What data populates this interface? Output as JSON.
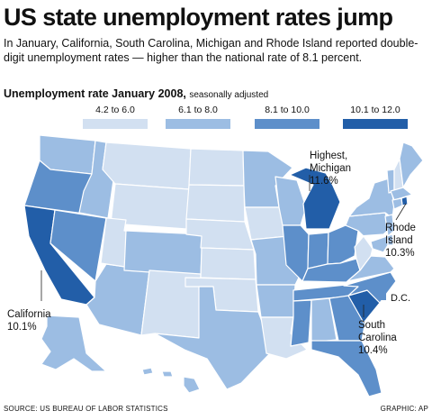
{
  "title": "US state unemployment rates jump",
  "subtitle": "In January, California, South Carolina, Michigan and Rhode Island reported double-digit unemployment rates — higher than the national rate of 8.1 percent.",
  "legend": {
    "title": "Unemployment rate January 2008,",
    "note": "seasonally adjusted",
    "classes": [
      {
        "label": "4.2 to 6.0",
        "color": "#d2e0f1"
      },
      {
        "label": "6.1 to 8.0",
        "color": "#9cbde3"
      },
      {
        "label": "8.1 to 10.0",
        "color": "#5d8fca"
      },
      {
        "label": "10.1 to 12.0",
        "color": "#225ea8"
      }
    ]
  },
  "callouts": {
    "michigan_line1": "Highest,",
    "michigan_line2": "Michigan",
    "michigan_value": "11.6%",
    "rhode_line1": "Rhode",
    "rhode_line2": "Island",
    "rhode_value": "10.3%",
    "california_line1": "California",
    "california_value": "10.1%",
    "southcarolina_line1": "South",
    "southcarolina_line2": "Carolina",
    "southcarolina_value": "10.4%",
    "dc_label": "D.C."
  },
  "footer": {
    "source": "SOURCE: US Bureau of Labor Statistics",
    "credit": "GRAPHIC: AP"
  },
  "states": [
    {
      "id": "WA",
      "class": 1
    },
    {
      "id": "OR",
      "class": 2
    },
    {
      "id": "CA",
      "class": 3
    },
    {
      "id": "ID",
      "class": 1
    },
    {
      "id": "NV",
      "class": 2
    },
    {
      "id": "AZ",
      "class": 1
    },
    {
      "id": "MT",
      "class": 0
    },
    {
      "id": "WY",
      "class": 0
    },
    {
      "id": "UT",
      "class": 0
    },
    {
      "id": "CO",
      "class": 1
    },
    {
      "id": "NM",
      "class": 0
    },
    {
      "id": "ND",
      "class": 0
    },
    {
      "id": "SD",
      "class": 0
    },
    {
      "id": "NE",
      "class": 0
    },
    {
      "id": "KS",
      "class": 0
    },
    {
      "id": "OK",
      "class": 0
    },
    {
      "id": "TX",
      "class": 1
    },
    {
      "id": "MN",
      "class": 1
    },
    {
      "id": "IA",
      "class": 0
    },
    {
      "id": "MO",
      "class": 1
    },
    {
      "id": "AR",
      "class": 1
    },
    {
      "id": "LA",
      "class": 0
    },
    {
      "id": "WI",
      "class": 1
    },
    {
      "id": "IL",
      "class": 2
    },
    {
      "id": "MI",
      "class": 3
    },
    {
      "id": "IN",
      "class": 2
    },
    {
      "id": "OH",
      "class": 2
    },
    {
      "id": "KY",
      "class": 2
    },
    {
      "id": "TN",
      "class": 2
    },
    {
      "id": "MS",
      "class": 2
    },
    {
      "id": "AL",
      "class": 1
    },
    {
      "id": "GA",
      "class": 2
    },
    {
      "id": "FL",
      "class": 2
    },
    {
      "id": "SC",
      "class": 3
    },
    {
      "id": "NC",
      "class": 2
    },
    {
      "id": "VA",
      "class": 1
    },
    {
      "id": "WV",
      "class": 0
    },
    {
      "id": "PA",
      "class": 1
    },
    {
      "id": "NY",
      "class": 1
    },
    {
      "id": "VT",
      "class": 1
    },
    {
      "id": "NH",
      "class": 0
    },
    {
      "id": "ME",
      "class": 1
    },
    {
      "id": "MA",
      "class": 1
    },
    {
      "id": "RI",
      "class": 3
    },
    {
      "id": "CT",
      "class": 1
    },
    {
      "id": "NJ",
      "class": 1
    },
    {
      "id": "DE",
      "class": 1
    },
    {
      "id": "MD",
      "class": 1
    },
    {
      "id": "DC",
      "class": 2
    },
    {
      "id": "AK",
      "class": 1
    },
    {
      "id": "HI",
      "class": 1
    }
  ]
}
